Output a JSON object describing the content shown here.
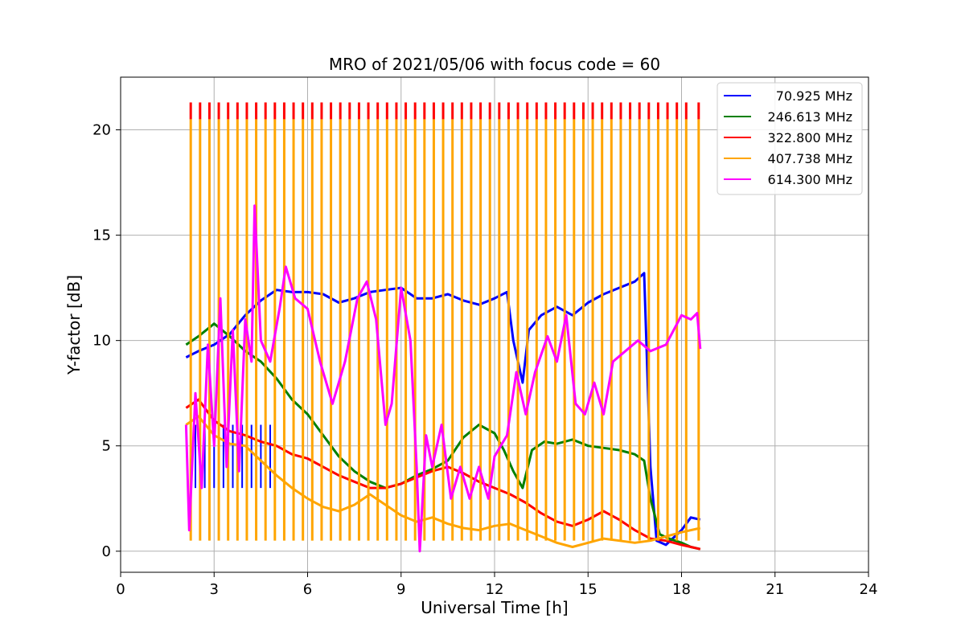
{
  "chart_data": {
    "type": "line",
    "title": "MRO of 2021/05/06 with focus code = 60",
    "xlabel": "Universal Time [h]",
    "ylabel": "Y-factor [dB]",
    "xlim": [
      0,
      24
    ],
    "ylim": [
      -1.0,
      22.5
    ],
    "xticks": [
      0,
      3,
      6,
      9,
      12,
      15,
      18,
      21,
      24
    ],
    "yticks": [
      0,
      5,
      10,
      15,
      20
    ],
    "grid": true,
    "legend_position": "top-right",
    "series": [
      {
        "name": "70.925 MHz",
        "color": "#0000ff",
        "points": [
          [
            2.1,
            9.2
          ],
          [
            2.5,
            9.5
          ],
          [
            3.0,
            9.8
          ],
          [
            3.5,
            10.3
          ],
          [
            4.0,
            11.2
          ],
          [
            4.5,
            11.9
          ],
          [
            5.0,
            12.4
          ],
          [
            5.5,
            12.3
          ],
          [
            6.0,
            12.3
          ],
          [
            6.5,
            12.2
          ],
          [
            7.0,
            11.8
          ],
          [
            7.5,
            12.0
          ],
          [
            8.0,
            12.3
          ],
          [
            8.5,
            12.4
          ],
          [
            9.0,
            12.5
          ],
          [
            9.5,
            12.0
          ],
          [
            10.0,
            12.0
          ],
          [
            10.5,
            12.2
          ],
          [
            11.0,
            11.9
          ],
          [
            11.5,
            11.7
          ],
          [
            12.0,
            12.0
          ],
          [
            12.4,
            12.3
          ],
          [
            12.6,
            10.0
          ],
          [
            12.9,
            8.0
          ],
          [
            13.1,
            10.5
          ],
          [
            13.5,
            11.2
          ],
          [
            14.0,
            11.6
          ],
          [
            14.5,
            11.2
          ],
          [
            15.0,
            11.8
          ],
          [
            15.5,
            12.2
          ],
          [
            16.0,
            12.5
          ],
          [
            16.5,
            12.8
          ],
          [
            16.8,
            13.2
          ],
          [
            17.0,
            4.0
          ],
          [
            17.2,
            0.5
          ],
          [
            17.5,
            0.3
          ],
          [
            18.0,
            1.0
          ],
          [
            18.3,
            1.6
          ],
          [
            18.6,
            1.5
          ]
        ],
        "spikes": {
          "x": [
            2.4,
            2.7,
            3.0,
            3.3,
            3.6,
            3.9,
            4.2,
            4.5,
            4.8
          ],
          "low": 3.0
        }
      },
      {
        "name": "246.613 MHz",
        "color": "#008000",
        "points": [
          [
            2.1,
            9.8
          ],
          [
            2.5,
            10.2
          ],
          [
            3.0,
            10.8
          ],
          [
            3.5,
            10.2
          ],
          [
            4.0,
            9.5
          ],
          [
            4.5,
            9.0
          ],
          [
            5.0,
            8.2
          ],
          [
            5.5,
            7.2
          ],
          [
            6.0,
            6.5
          ],
          [
            6.5,
            5.5
          ],
          [
            7.0,
            4.5
          ],
          [
            7.5,
            3.8
          ],
          [
            8.0,
            3.3
          ],
          [
            8.5,
            3.0
          ],
          [
            9.0,
            3.2
          ],
          [
            9.5,
            3.6
          ],
          [
            10.0,
            3.9
          ],
          [
            10.5,
            4.3
          ],
          [
            11.0,
            5.4
          ],
          [
            11.5,
            6.0
          ],
          [
            12.0,
            5.6
          ],
          [
            12.3,
            4.8
          ],
          [
            12.6,
            3.8
          ],
          [
            12.9,
            3.0
          ],
          [
            13.2,
            4.8
          ],
          [
            13.6,
            5.2
          ],
          [
            14.0,
            5.1
          ],
          [
            14.5,
            5.3
          ],
          [
            15.0,
            5.0
          ],
          [
            15.5,
            4.9
          ],
          [
            16.0,
            4.8
          ],
          [
            16.5,
            4.6
          ],
          [
            16.8,
            4.3
          ],
          [
            17.0,
            2.5
          ],
          [
            17.3,
            0.8
          ],
          [
            17.6,
            0.6
          ],
          [
            18.0,
            0.4
          ],
          [
            18.3,
            0.2
          ],
          [
            18.6,
            0.1
          ]
        ]
      },
      {
        "name": "322.800 MHz",
        "color": "#ff0000",
        "points": [
          [
            2.1,
            6.8
          ],
          [
            2.5,
            7.2
          ],
          [
            3.0,
            6.2
          ],
          [
            3.5,
            5.7
          ],
          [
            4.0,
            5.5
          ],
          [
            4.5,
            5.2
          ],
          [
            5.0,
            5.0
          ],
          [
            5.5,
            4.6
          ],
          [
            6.0,
            4.4
          ],
          [
            6.5,
            4.0
          ],
          [
            7.0,
            3.6
          ],
          [
            7.5,
            3.3
          ],
          [
            8.0,
            3.0
          ],
          [
            8.5,
            3.0
          ],
          [
            9.0,
            3.2
          ],
          [
            9.5,
            3.5
          ],
          [
            10.0,
            3.8
          ],
          [
            10.5,
            4.0
          ],
          [
            11.0,
            3.7
          ],
          [
            11.5,
            3.3
          ],
          [
            12.0,
            3.0
          ],
          [
            12.5,
            2.7
          ],
          [
            13.0,
            2.3
          ],
          [
            13.5,
            1.8
          ],
          [
            14.0,
            1.4
          ],
          [
            14.5,
            1.2
          ],
          [
            15.0,
            1.5
          ],
          [
            15.5,
            1.9
          ],
          [
            16.0,
            1.5
          ],
          [
            16.5,
            1.0
          ],
          [
            17.0,
            0.6
          ],
          [
            17.5,
            0.5
          ],
          [
            18.0,
            0.3
          ],
          [
            18.3,
            0.2
          ],
          [
            18.6,
            0.1
          ]
        ]
      },
      {
        "name": "407.738 MHz",
        "color": "#ffa500",
        "points": [
          [
            2.1,
            6.0
          ],
          [
            2.5,
            6.4
          ],
          [
            3.0,
            5.5
          ],
          [
            3.5,
            5.1
          ],
          [
            4.0,
            5.0
          ],
          [
            4.5,
            4.3
          ],
          [
            5.0,
            3.6
          ],
          [
            5.5,
            3.0
          ],
          [
            6.0,
            2.5
          ],
          [
            6.5,
            2.1
          ],
          [
            7.0,
            1.9
          ],
          [
            7.5,
            2.2
          ],
          [
            8.0,
            2.7
          ],
          [
            8.5,
            2.2
          ],
          [
            9.0,
            1.7
          ],
          [
            9.5,
            1.4
          ],
          [
            10.0,
            1.6
          ],
          [
            10.5,
            1.3
          ],
          [
            11.0,
            1.1
          ],
          [
            11.5,
            1.0
          ],
          [
            12.0,
            1.2
          ],
          [
            12.5,
            1.3
          ],
          [
            13.0,
            1.0
          ],
          [
            13.5,
            0.7
          ],
          [
            14.0,
            0.4
          ],
          [
            14.5,
            0.2
          ],
          [
            15.0,
            0.4
          ],
          [
            15.5,
            0.6
          ],
          [
            16.0,
            0.5
          ],
          [
            16.5,
            0.4
          ],
          [
            17.0,
            0.5
          ],
          [
            17.5,
            0.7
          ],
          [
            18.0,
            0.9
          ],
          [
            18.6,
            1.1
          ]
        ],
        "spikes": {
          "x": [
            2.25,
            2.55,
            2.85,
            3.15,
            3.45,
            3.75,
            4.05,
            4.35,
            4.65,
            4.95,
            5.25,
            5.55,
            5.85,
            6.15,
            6.45,
            6.75,
            7.05,
            7.35,
            7.65,
            7.95,
            8.25,
            8.55,
            8.85,
            9.15,
            9.45,
            9.75,
            10.05,
            10.35,
            10.65,
            10.95,
            11.25,
            11.55,
            11.85,
            12.15,
            12.45,
            12.75,
            13.05,
            13.35,
            13.65,
            13.95,
            14.25,
            14.55,
            14.85,
            15.15,
            15.45,
            15.75,
            16.05,
            16.35,
            16.65,
            16.95,
            17.25,
            17.55,
            17.85,
            18.15,
            18.55
          ],
          "top": 20.5,
          "plateau": 11.4,
          "red_top": 21.3
        }
      },
      {
        "name": "614.300 MHz",
        "color": "#ff00ff",
        "points": [
          [
            2.1,
            6.0
          ],
          [
            2.2,
            1.0
          ],
          [
            2.4,
            7.5
          ],
          [
            2.6,
            3.0
          ],
          [
            2.8,
            9.8
          ],
          [
            3.0,
            5.0
          ],
          [
            3.2,
            12.0
          ],
          [
            3.4,
            4.0
          ],
          [
            3.6,
            10.5
          ],
          [
            3.8,
            3.8
          ],
          [
            4.0,
            11.0
          ],
          [
            4.2,
            9.0
          ],
          [
            4.3,
            16.4
          ],
          [
            4.5,
            10.0
          ],
          [
            4.8,
            9.0
          ],
          [
            5.1,
            11.5
          ],
          [
            5.3,
            13.5
          ],
          [
            5.6,
            12.0
          ],
          [
            6.0,
            11.5
          ],
          [
            6.4,
            9.0
          ],
          [
            6.8,
            7.0
          ],
          [
            7.2,
            9.0
          ],
          [
            7.6,
            12.0
          ],
          [
            7.9,
            12.8
          ],
          [
            8.2,
            11.0
          ],
          [
            8.5,
            6.0
          ],
          [
            8.7,
            7.0
          ],
          [
            9.0,
            12.5
          ],
          [
            9.3,
            10.0
          ],
          [
            9.5,
            4.0
          ],
          [
            9.6,
            0.0
          ],
          [
            9.8,
            5.5
          ],
          [
            10.0,
            4.0
          ],
          [
            10.3,
            6.0
          ],
          [
            10.6,
            2.5
          ],
          [
            10.9,
            4.0
          ],
          [
            11.2,
            2.5
          ],
          [
            11.5,
            4.0
          ],
          [
            11.8,
            2.5
          ],
          [
            12.0,
            4.5
          ],
          [
            12.4,
            5.5
          ],
          [
            12.7,
            8.5
          ],
          [
            13.0,
            6.5
          ],
          [
            13.3,
            8.5
          ],
          [
            13.7,
            10.2
          ],
          [
            14.0,
            9.0
          ],
          [
            14.3,
            11.2
          ],
          [
            14.6,
            7.0
          ],
          [
            14.9,
            6.5
          ],
          [
            15.2,
            8.0
          ],
          [
            15.5,
            6.5
          ],
          [
            15.8,
            9.0
          ],
          [
            16.2,
            9.5
          ],
          [
            16.6,
            10.0
          ],
          [
            17.0,
            9.5
          ],
          [
            17.5,
            9.8
          ],
          [
            18.0,
            11.2
          ],
          [
            18.3,
            11.0
          ],
          [
            18.5,
            11.3
          ],
          [
            18.6,
            9.6
          ]
        ]
      }
    ]
  }
}
